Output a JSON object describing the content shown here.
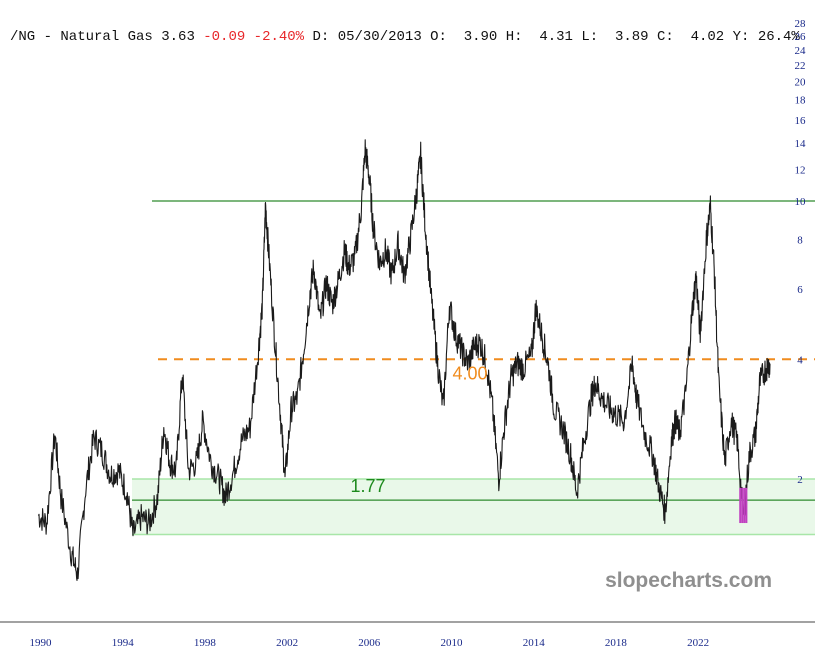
{
  "header": {
    "symbol": "/NG - Natural Gas",
    "last": "3.63",
    "change": "-0.09",
    "change_pct": "-2.40%",
    "date": "D: 05/30/2013",
    "open": "O:  3.90",
    "high": "H:  4.31",
    "low": "L:  3.89",
    "close": "C:  4.02",
    "ytd": "Y: 26.4%"
  },
  "watermark": "slopecharts.com",
  "colors": {
    "price": "#1a1a1a",
    "negative": "#e8282b",
    "resistance": "#2e8b2e",
    "orange_line": "#f08c1e",
    "zone_fill": "#e9f8e9",
    "zone_edge": "#a8e6a8",
    "recent_bars": "#c040c0",
    "ticks": "#1a2a8a"
  },
  "chart_data": {
    "type": "line",
    "title": "/NG - Natural Gas",
    "scale": "log",
    "xlim": [
      1989.0,
      2026.8
    ],
    "ylim": [
      1.15,
      30
    ],
    "x_ticks": [
      "1990",
      "1994",
      "1998",
      "2002",
      "2006",
      "2010",
      "2014",
      "2018",
      "2022"
    ],
    "y_ticks": [
      "2",
      "4",
      "6",
      "8",
      "10",
      "12",
      "14",
      "16",
      "18",
      "20",
      "22",
      "24",
      "26",
      "28"
    ],
    "horizontal_lines": [
      {
        "value": 10.0,
        "style": "solid",
        "color": "#2e8b2e"
      },
      {
        "value": 1.77,
        "style": "solid",
        "color": "#2e8b2e",
        "label": "1.77"
      },
      {
        "value": 4.0,
        "style": "dashed",
        "color": "#f08c1e",
        "label": "4.00"
      }
    ],
    "zone": {
      "low": 1.45,
      "high": 2.0
    },
    "series": [
      {
        "values": [
          [
            1989.9,
            1.62
          ],
          [
            1990.3,
            1.55
          ],
          [
            1990.7,
            2.6
          ],
          [
            1991.0,
            1.8
          ],
          [
            1991.5,
            1.3
          ],
          [
            1991.8,
            1.15
          ],
          [
            1992.2,
            1.9
          ],
          [
            1992.6,
            2.55
          ],
          [
            1993.0,
            2.35
          ],
          [
            1993.4,
            2.05
          ],
          [
            1993.8,
            2.1
          ],
          [
            1994.2,
            1.85
          ],
          [
            1994.5,
            1.45
          ],
          [
            1994.9,
            1.6
          ],
          [
            1995.3,
            1.55
          ],
          [
            1995.7,
            1.8
          ],
          [
            1996.0,
            2.7
          ],
          [
            1996.3,
            2.2
          ],
          [
            1996.6,
            2.1
          ],
          [
            1996.9,
            3.7
          ],
          [
            1997.2,
            2.1
          ],
          [
            1997.6,
            2.2
          ],
          [
            1997.9,
            2.8
          ],
          [
            1998.3,
            2.2
          ],
          [
            1998.7,
            2.0
          ],
          [
            1999.0,
            1.8
          ],
          [
            1999.4,
            2.1
          ],
          [
            1999.8,
            2.5
          ],
          [
            2000.2,
            2.7
          ],
          [
            2000.6,
            4.2
          ],
          [
            2000.8,
            5.5
          ],
          [
            2000.95,
            9.8
          ],
          [
            2001.1,
            7.5
          ],
          [
            2001.4,
            4.5
          ],
          [
            2001.7,
            2.8
          ],
          [
            2001.9,
            2.0
          ],
          [
            2002.2,
            3.0
          ],
          [
            2002.5,
            3.2
          ],
          [
            2002.8,
            4.2
          ],
          [
            2003.1,
            5.8
          ],
          [
            2003.3,
            6.8
          ],
          [
            2003.6,
            5.0
          ],
          [
            2003.9,
            6.2
          ],
          [
            2004.2,
            5.5
          ],
          [
            2004.5,
            6.3
          ],
          [
            2004.8,
            7.5
          ],
          [
            2005.0,
            6.8
          ],
          [
            2005.3,
            7.2
          ],
          [
            2005.6,
            9.5
          ],
          [
            2005.8,
            13.5
          ],
          [
            2006.0,
            11.5
          ],
          [
            2006.2,
            8.5
          ],
          [
            2006.5,
            7.0
          ],
          [
            2006.8,
            7.5
          ],
          [
            2007.1,
            6.5
          ],
          [
            2007.4,
            7.8
          ],
          [
            2007.7,
            6.5
          ],
          [
            2008.0,
            8.0
          ],
          [
            2008.3,
            10.5
          ],
          [
            2008.5,
            13.0
          ],
          [
            2008.7,
            9.0
          ],
          [
            2009.0,
            5.8
          ],
          [
            2009.3,
            4.0
          ],
          [
            2009.6,
            3.0
          ],
          [
            2009.9,
            5.5
          ],
          [
            2010.2,
            4.6
          ],
          [
            2010.5,
            4.2
          ],
          [
            2010.8,
            3.9
          ],
          [
            2011.1,
            4.3
          ],
          [
            2011.4,
            4.4
          ],
          [
            2011.7,
            3.9
          ],
          [
            2012.0,
            3.0
          ],
          [
            2012.3,
            2.0
          ],
          [
            2012.6,
            2.8
          ],
          [
            2012.9,
            3.6
          ],
          [
            2013.2,
            3.9
          ],
          [
            2013.5,
            3.8
          ],
          [
            2013.9,
            4.1
          ],
          [
            2014.1,
            5.4
          ],
          [
            2014.4,
            4.6
          ],
          [
            2014.7,
            3.9
          ],
          [
            2015.0,
            3.0
          ],
          [
            2015.4,
            2.7
          ],
          [
            2015.8,
            2.3
          ],
          [
            2016.1,
            1.85
          ],
          [
            2016.4,
            2.4
          ],
          [
            2016.8,
            3.2
          ],
          [
            2017.0,
            3.5
          ],
          [
            2017.3,
            3.2
          ],
          [
            2017.7,
            3.0
          ],
          [
            2018.0,
            2.9
          ],
          [
            2018.4,
            2.8
          ],
          [
            2018.8,
            3.9
          ],
          [
            2019.0,
            3.2
          ],
          [
            2019.4,
            2.6
          ],
          [
            2019.8,
            2.3
          ],
          [
            2020.1,
            1.9
          ],
          [
            2020.4,
            1.65
          ],
          [
            2020.7,
            2.5
          ],
          [
            2020.9,
            2.8
          ],
          [
            2021.1,
            2.6
          ],
          [
            2021.4,
            3.3
          ],
          [
            2021.7,
            5.2
          ],
          [
            2021.9,
            6.5
          ],
          [
            2022.1,
            4.6
          ],
          [
            2022.4,
            8.0
          ],
          [
            2022.6,
            9.7
          ],
          [
            2022.8,
            6.5
          ],
          [
            2023.0,
            3.5
          ],
          [
            2023.3,
            2.2
          ],
          [
            2023.6,
            2.8
          ],
          [
            2023.9,
            2.5
          ],
          [
            2024.2,
            1.6
          ],
          [
            2024.5,
            2.3
          ],
          [
            2024.8,
            2.6
          ],
          [
            2025.0,
            3.5
          ],
          [
            2025.3,
            3.8
          ],
          [
            2025.5,
            3.9
          ]
        ]
      }
    ],
    "highlight_bars": {
      "color": "#c040c0",
      "x": [
        2024.05,
        2024.15,
        2024.25,
        2024.35
      ],
      "low": 1.55,
      "high": 1.9
    }
  }
}
